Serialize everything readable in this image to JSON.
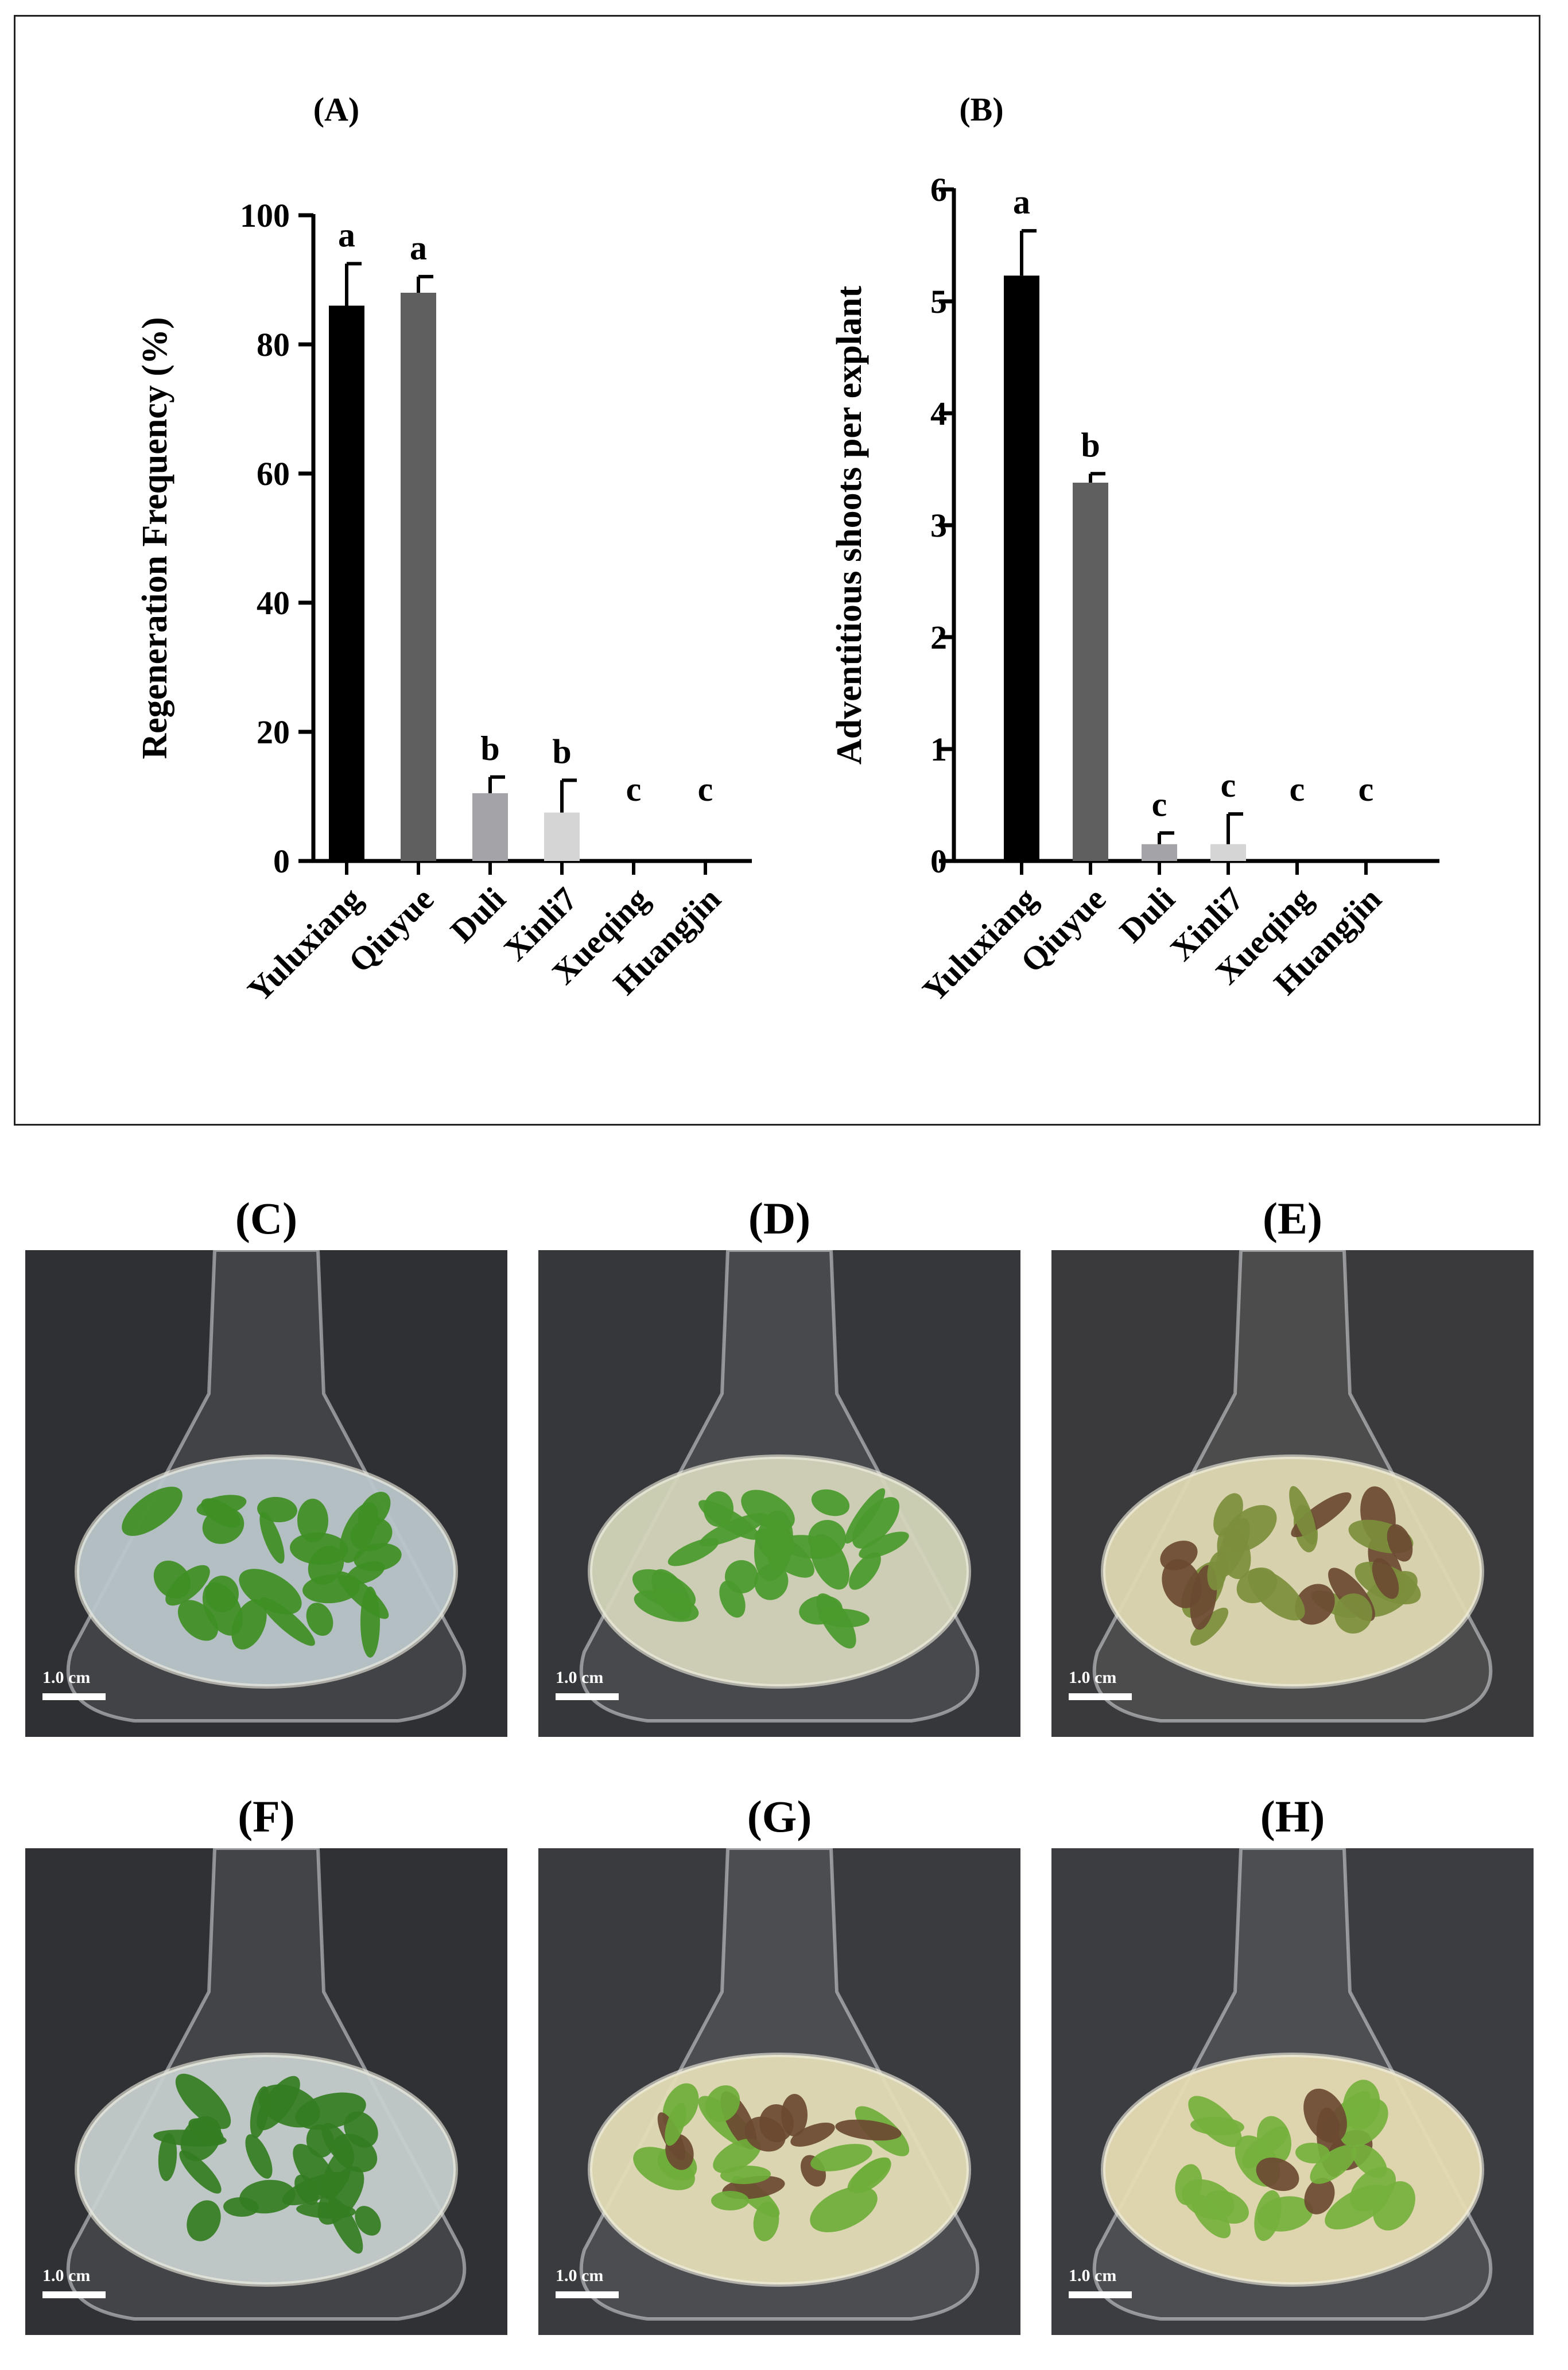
{
  "chart_data": [
    {
      "panel_label": "(A)",
      "type": "bar",
      "categories": [
        "Yuluxiang",
        "Qiuyue",
        "Duli",
        "Xinli7",
        "Xueqing",
        "Huangjin"
      ],
      "values": [
        86,
        88,
        10.5,
        7.5,
        0,
        0
      ],
      "errors": [
        6.5,
        2.5,
        2.5,
        5.0,
        0,
        0
      ],
      "significance_letters": [
        "a",
        "a",
        "b",
        "b",
        "c",
        "c"
      ],
      "bar_colors": [
        "#000000",
        "#5f5f5f",
        "#a3a3a8",
        "#d5d5d5",
        "#ffffff",
        "#ffffff"
      ],
      "ylabel": "Regeneration Frequency (%)",
      "ylim": [
        0,
        100
      ],
      "yticks": [
        "0",
        "20",
        "40",
        "60",
        "80",
        "100"
      ],
      "grid": false
    },
    {
      "panel_label": "(B)",
      "type": "bar",
      "categories": [
        "Yuluxiang",
        "Qiuyue",
        "Duli",
        "Xinli7",
        "Xueqing",
        "Huangjin"
      ],
      "values": [
        5.23,
        3.38,
        0.15,
        0.15,
        0,
        0
      ],
      "errors": [
        0.4,
        0.08,
        0.1,
        0.27,
        0,
        0
      ],
      "significance_letters": [
        "a",
        "b",
        "c",
        "c",
        "c",
        "c"
      ],
      "bar_colors": [
        "#000000",
        "#5f5f5f",
        "#a3a3a8",
        "#d5d5d5",
        "#ffffff",
        "#ffffff"
      ],
      "ylabel": "Adventitious shoots per explant",
      "ylim": [
        0,
        6
      ],
      "yticks": [
        "0",
        "1",
        "2",
        "3",
        "4",
        "5",
        "6"
      ],
      "grid": false
    }
  ],
  "photos": [
    {
      "label": "(C)",
      "scale_text": "1.0 cm",
      "background": "#2f3034",
      "medium": "#b9c6ca",
      "shoot_color": "#3f8f24",
      "brown": false
    },
    {
      "label": "(D)",
      "scale_text": "1.0 cm",
      "background": "#35373b",
      "medium": "#d4d5b9",
      "shoot_color": "#4a9a2c",
      "brown": false
    },
    {
      "label": "(E)",
      "scale_text": "1.0 cm",
      "background": "#3a3a3c",
      "medium": "#ded8b2",
      "shoot_color": "#7c8e3c",
      "brown": true
    },
    {
      "label": "(F)",
      "scale_text": "1.0 cm",
      "background": "#303135",
      "medium": "#c6cfcd",
      "shoot_color": "#347d22",
      "brown": false
    },
    {
      "label": "(G)",
      "scale_text": "1.0 cm",
      "background": "#3a3b3f",
      "medium": "#e3ddb6",
      "shoot_color": "#6fae3a",
      "brown": true
    },
    {
      "label": "(H)",
      "scale_text": "1.0 cm",
      "background": "#3c3d41",
      "medium": "#e6dbb3",
      "shoot_color": "#75b13d",
      "brown": true
    }
  ]
}
